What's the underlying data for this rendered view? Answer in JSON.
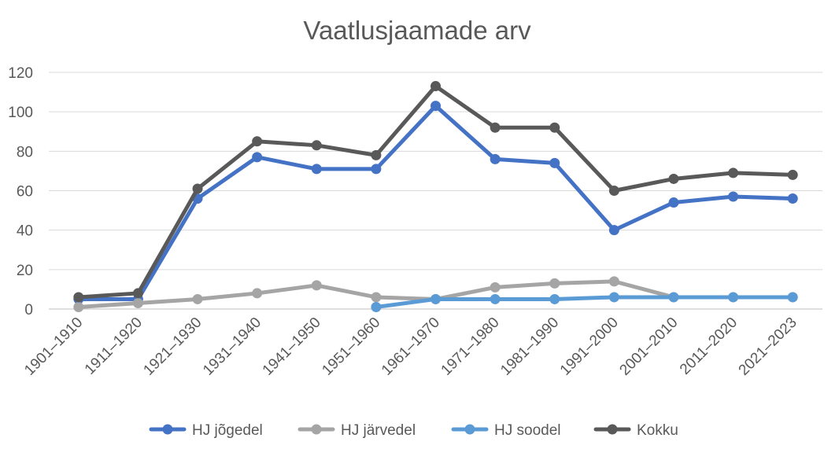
{
  "chart_data": {
    "type": "line",
    "title": "Vaatlusjaamade arv",
    "xlabel": "",
    "ylabel": "",
    "categories": [
      "1901–1910",
      "1911–1920",
      "1921–1930",
      "1931–1940",
      "1941–1950",
      "1951–1960",
      "1961–1970",
      "1971–1980",
      "1981–1990",
      "1991–2000",
      "2001–2010",
      "2011–2020",
      "2021–2023"
    ],
    "ylim": [
      0,
      120
    ],
    "yticks": [
      0,
      20,
      40,
      60,
      80,
      100,
      120
    ],
    "grid": true,
    "legend_position": "bottom",
    "series": [
      {
        "name": "HJ jõgedel",
        "color": "#4472C4",
        "values": [
          5,
          5,
          56,
          77,
          71,
          71,
          103,
          76,
          74,
          40,
          54,
          57,
          56
        ]
      },
      {
        "name": "HJ järvedel",
        "color": "#A5A5A5",
        "values": [
          1,
          3,
          5,
          8,
          12,
          6,
          5,
          11,
          13,
          14,
          6,
          6,
          6
        ]
      },
      {
        "name": "HJ soodel",
        "color": "#5B9BD5",
        "values": [
          null,
          null,
          null,
          null,
          null,
          1,
          5,
          5,
          5,
          6,
          6,
          6,
          6
        ]
      },
      {
        "name": "Kokku",
        "color": "#595959",
        "values": [
          6,
          8,
          61,
          85,
          83,
          78,
          113,
          92,
          92,
          60,
          66,
          69,
          68
        ]
      }
    ]
  }
}
